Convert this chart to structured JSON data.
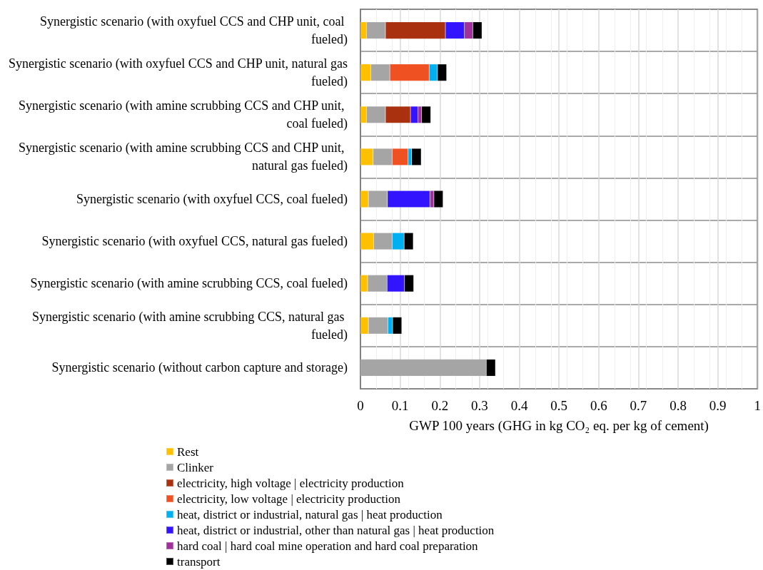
{
  "chart_data": {
    "type": "bar",
    "orientation": "horizontal",
    "stacked": true,
    "xlabel": "GWP 100 years (GHG in kg CO₂ eq. per kg of cement)",
    "categories": [
      "Synergistic scenario (with oxyfuel CCS and CHP unit, coal fueled)",
      "Synergistic scenario (with oxyfuel CCS and CHP unit, natural gas fueled)",
      "Synergistic scenario (with amine scrubbing CCS and CHP unit, coal fueled)",
      "Synergistic scenario (with amine scrubbing CCS and CHP unit, natural gas fueled)",
      "Synergistic scenario (with oxyfuel CCS, coal fueled)",
      "Synergistic scenario (with oxyfuel CCS, natural gas fueled)",
      "Synergistic scenario (with amine scrubbing CCS, coal fueled)",
      "Synergistic scenario (with amine scrubbing CCS, natural gas fueled)",
      "Synergistic scenario (without carbon capture and storage)"
    ],
    "series": [
      {
        "name": "Rest",
        "color": "#ffc000",
        "values": [
          0.015,
          0.026,
          0.015,
          0.032,
          0.02,
          0.033,
          0.018,
          0.02,
          null
        ]
      },
      {
        "name": "Clinker",
        "color": "#a5a5a5",
        "values": [
          0.048,
          0.048,
          0.048,
          0.048,
          0.048,
          0.047,
          0.049,
          0.049,
          0.317
        ]
      },
      {
        "name": "electricity, high voltage | electricity production",
        "color": "#a9310f",
        "values": [
          0.151,
          null,
          0.063,
          null,
          null,
          null,
          null,
          null,
          null
        ]
      },
      {
        "name": "electricity, low voltage | electricity production",
        "color": "#f05122",
        "values": [
          null,
          0.099,
          null,
          0.04,
          null,
          null,
          null,
          null,
          null
        ]
      },
      {
        "name": "heat, district or industrial, natural gas | heat production",
        "color": "#00b0f0",
        "values": [
          null,
          0.021,
          null,
          0.009,
          null,
          0.03,
          null,
          0.012,
          null
        ]
      },
      {
        "name": "heat, district or industrial, other than natural gas | heat production",
        "color": "#3314ff",
        "values": [
          0.048,
          null,
          0.019,
          null,
          0.107,
          null,
          0.044,
          null,
          null
        ]
      },
      {
        "name": "hard coal | hard coal mine operation and hard coal preparation",
        "color": "#a0309a",
        "values": [
          0.021,
          null,
          0.009,
          null,
          0.01,
          null,
          null,
          null,
          null
        ]
      },
      {
        "name": "transport",
        "color": "#000000",
        "values": [
          0.023,
          0.023,
          0.023,
          0.024,
          0.023,
          0.023,
          0.023,
          0.023,
          0.023
        ]
      }
    ],
    "xlim": [
      0,
      1
    ],
    "xticks": [
      0,
      0.1,
      0.2,
      0.3,
      0.4,
      0.5,
      0.6,
      0.7,
      0.8,
      0.9,
      1
    ],
    "grid": true,
    "legend": "bottom"
  }
}
